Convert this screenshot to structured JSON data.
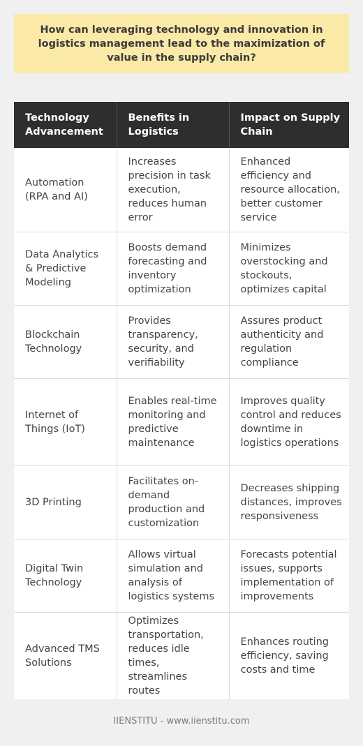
{
  "question": "How can leveraging technology and innovation in logistics management lead to the maximization of value in the supply chain?",
  "table": {
    "headers": [
      "Technology Advancement",
      "Benefits in Logistics",
      "Impact on Supply Chain"
    ],
    "rows": [
      [
        "Automation (RPA and AI)",
        "Increases precision in task execution, reduces human error",
        "Enhanced efficiency and resource allocation, better customer service"
      ],
      [
        "Data Analytics & Predictive Modeling",
        "Boosts demand forecasting and inventory optimization",
        "Minimizes overstocking and stockouts, optimizes capital"
      ],
      [
        "Blockchain Technology",
        "Provides transparency, security, and verifiability",
        "Assures product authenticity and regulation compliance"
      ],
      [
        "Internet of Things (IoT)",
        "Enables real-time monitoring and predictive maintenance",
        "Improves quality control and reduces downtime in logistics operations"
      ],
      [
        "3D Printing",
        "Facilitates on-demand production and customization",
        "Decreases shipping distances, improves responsiveness"
      ],
      [
        "Digital Twin Technology",
        "Allows virtual simulation and analysis of logistics systems",
        "Forecasts potential issues, supports implementation of improvements"
      ],
      [
        "Advanced TMS Solutions",
        "Optimizes transportation, reduces idle times, streamlines routes",
        "Enhances routing efficiency, saving costs and time"
      ]
    ]
  },
  "footer": "IIENSTITU - www.iienstitu.com",
  "colors": {
    "background": "#f0f0f0",
    "question_box": "#fbe9a8",
    "header_bg": "#2e2e2e",
    "header_text": "#ffffff",
    "cell_bg": "#ffffff"
  }
}
